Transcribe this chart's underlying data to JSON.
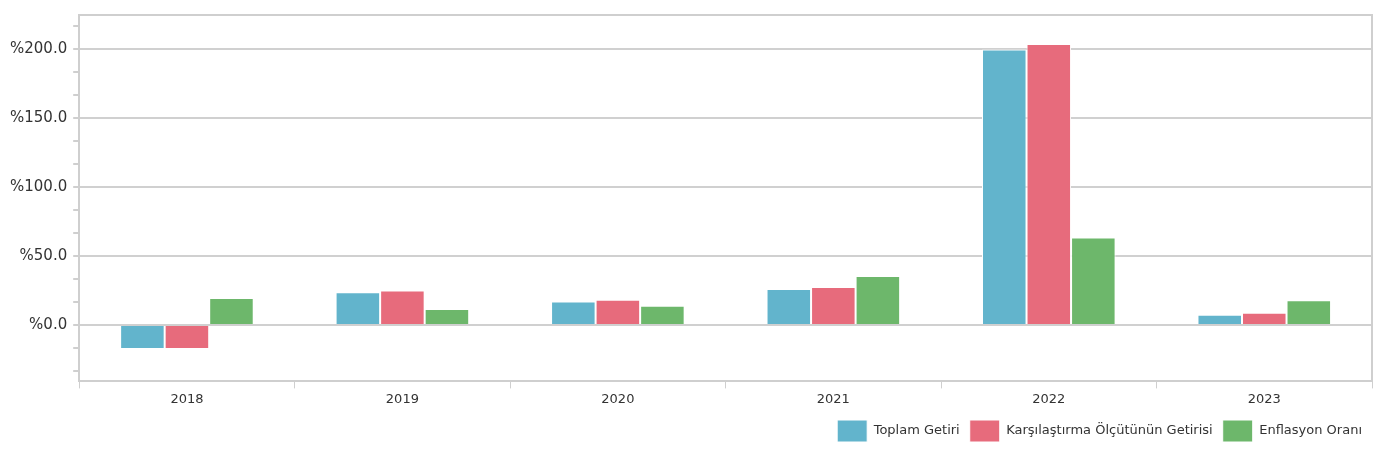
{
  "chart_data": {
    "type": "bar",
    "categories": [
      "2018",
      "2019",
      "2020",
      "2021",
      "2022",
      "2023"
    ],
    "series": [
      {
        "name": "Toplam Getiri",
        "color": "#62b4cc",
        "values": [
          -17.5,
          23.8,
          17,
          26,
          200,
          7.3
        ]
      },
      {
        "name": "Karşılaştırma Ölçütünün Getirisi",
        "color": "#e76b7c",
        "values": [
          -17.5,
          25,
          18.3,
          27.6,
          204,
          8.8
        ]
      },
      {
        "name": "Enflasyon Oranı",
        "color": "#6db76b",
        "values": [
          19.5,
          11.5,
          14,
          35.6,
          63.4,
          18
        ]
      }
    ],
    "ylim": [
      -41,
      225
    ],
    "yticks": [
      {
        "value": -33.3,
        "label": null
      },
      {
        "value": -16.7,
        "label": null
      },
      {
        "value": 0,
        "label": "%0.0"
      },
      {
        "value": 16.7,
        "label": null
      },
      {
        "value": 33.3,
        "label": null
      },
      {
        "value": 50,
        "label": "%50.0"
      },
      {
        "value": 66.7,
        "label": null
      },
      {
        "value": 83.3,
        "label": null
      },
      {
        "value": 100,
        "label": "%100.0"
      },
      {
        "value": 116.7,
        "label": null
      },
      {
        "value": 133.3,
        "label": null
      },
      {
        "value": 150,
        "label": "%150.0"
      },
      {
        "value": 166.7,
        "label": null
      },
      {
        "value": 183.3,
        "label": null
      },
      {
        "value": 200,
        "label": "%200.0"
      },
      {
        "value": 216.7,
        "label": null
      }
    ],
    "grid": "y",
    "legend": "bottom right"
  }
}
